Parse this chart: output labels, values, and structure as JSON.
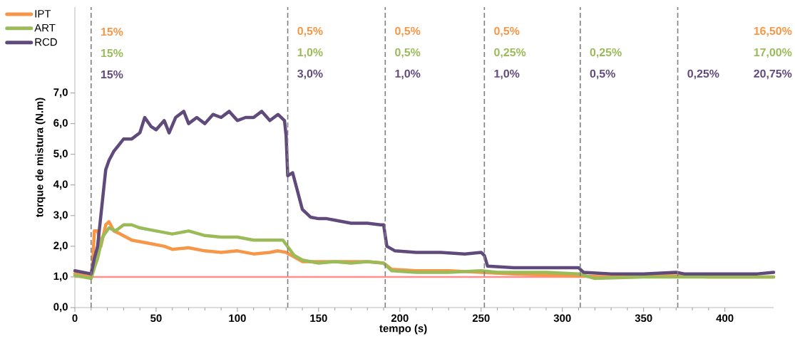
{
  "chart_data": {
    "type": "line",
    "xlabel": "tempo (s)",
    "ylabel": "torque de mistura (N.m)",
    "xlim": [
      0,
      430
    ],
    "ylim": [
      0,
      9.8
    ],
    "xticks": [
      0,
      50,
      100,
      150,
      200,
      250,
      300,
      350,
      400
    ],
    "yticks": [
      {
        "value": 0,
        "label": "0,0"
      },
      {
        "value": 1,
        "label": "1,0"
      },
      {
        "value": 2,
        "label": "2,0"
      },
      {
        "value": 3,
        "label": "3,0"
      },
      {
        "value": 4,
        "label": "4,0"
      },
      {
        "value": 5,
        "label": "5,0"
      },
      {
        "value": 6,
        "label": "6,0"
      },
      {
        "value": 7,
        "label": "7,0"
      }
    ],
    "grid": false,
    "legend": "top left",
    "marker": "none",
    "line_style": "solid",
    "series": [
      {
        "name": "IPT",
        "color": "#f79646",
        "x": [
          0,
          10,
          11,
          12,
          14,
          16,
          19,
          21,
          24,
          28,
          35,
          45,
          55,
          60,
          70,
          80,
          90,
          100,
          110,
          120,
          125,
          130,
          135,
          140,
          150,
          160,
          170,
          180,
          190,
          195,
          210,
          230,
          250,
          270,
          300,
          330,
          360,
          390,
          430
        ],
        "values": [
          1.1,
          1.0,
          1.5,
          2.5,
          2.5,
          2.0,
          2.7,
          2.8,
          2.5,
          2.4,
          2.2,
          2.1,
          2.0,
          1.9,
          1.95,
          1.85,
          1.8,
          1.85,
          1.75,
          1.8,
          1.85,
          1.8,
          1.65,
          1.5,
          1.5,
          1.5,
          1.5,
          1.5,
          1.45,
          1.25,
          1.2,
          1.2,
          1.15,
          1.1,
          1.05,
          1.0,
          1.05,
          1.0,
          1.0
        ]
      },
      {
        "name": "ART",
        "color": "#9bbb59",
        "x": [
          0,
          10,
          12,
          14,
          17,
          21,
          25,
          30,
          35,
          40,
          50,
          60,
          70,
          80,
          90,
          100,
          110,
          120,
          128,
          135,
          140,
          150,
          160,
          170,
          180,
          190,
          195,
          210,
          230,
          250,
          260,
          290,
          310,
          320,
          350,
          370,
          400,
          430
        ],
        "values": [
          1.05,
          0.95,
          1.3,
          1.6,
          2.3,
          2.6,
          2.5,
          2.7,
          2.7,
          2.6,
          2.5,
          2.4,
          2.5,
          2.35,
          2.3,
          2.3,
          2.2,
          2.2,
          2.2,
          1.7,
          1.55,
          1.45,
          1.5,
          1.45,
          1.5,
          1.45,
          1.2,
          1.15,
          1.15,
          1.2,
          1.15,
          1.15,
          1.1,
          0.95,
          1.0,
          1.0,
          1.0,
          1.0
        ]
      },
      {
        "name": "RCD",
        "color": "#604a7b",
        "x": [
          0,
          5,
          10,
          12,
          14,
          17,
          19,
          21,
          24,
          27,
          30,
          35,
          40,
          43,
          47,
          50,
          55,
          58,
          62,
          67,
          70,
          75,
          80,
          85,
          90,
          95,
          100,
          105,
          110,
          115,
          120,
          125,
          129,
          130,
          131,
          134,
          137,
          140,
          145,
          150,
          155,
          160,
          170,
          180,
          188,
          190,
          192,
          197,
          210,
          225,
          240,
          250,
          252,
          254,
          270,
          290,
          305,
          310,
          313,
          330,
          350,
          370,
          375,
          400,
          420,
          430
        ],
        "values": [
          1.2,
          1.15,
          1.1,
          1.6,
          2.0,
          3.5,
          4.5,
          4.8,
          5.1,
          5.3,
          5.5,
          5.5,
          5.7,
          6.2,
          5.9,
          5.8,
          6.1,
          5.7,
          6.2,
          6.4,
          6.0,
          6.2,
          6.0,
          6.3,
          6.2,
          6.4,
          6.1,
          6.2,
          6.2,
          6.4,
          6.1,
          6.3,
          6.1,
          5.6,
          4.3,
          4.4,
          3.8,
          3.2,
          2.95,
          2.9,
          2.9,
          2.85,
          2.75,
          2.75,
          2.7,
          2.7,
          2.0,
          1.85,
          1.8,
          1.8,
          1.75,
          1.8,
          1.7,
          1.35,
          1.3,
          1.3,
          1.3,
          1.3,
          1.15,
          1.1,
          1.1,
          1.15,
          1.1,
          1.1,
          1.1,
          1.15
        ]
      }
    ],
    "ref_lines": [
      {
        "axis": "y",
        "value": 1,
        "color": "#ff8f8f",
        "line_style": "solid"
      },
      {
        "axis": "x",
        "value": 10,
        "color": "#7f7f7f",
        "line_style": "dashed"
      },
      {
        "axis": "x",
        "value": 131,
        "color": "#7f7f7f",
        "line_style": "dashed"
      },
      {
        "axis": "x",
        "value": 191,
        "color": "#7f7f7f",
        "line_style": "dashed"
      },
      {
        "axis": "x",
        "value": 252,
        "color": "#7f7f7f",
        "line_style": "dashed"
      },
      {
        "axis": "x",
        "value": 311,
        "color": "#7f7f7f",
        "line_style": "dashed"
      },
      {
        "axis": "x",
        "value": 371,
        "color": "#7f7f7f",
        "line_style": "dashed"
      }
    ],
    "annotations": [
      "15%",
      "0,5%",
      "0,5%",
      "0,5%",
      "16,50%",
      "15%",
      "1,0%",
      "0,5%",
      "0,25%",
      "0,25%",
      "17,00%",
      "15%",
      "3,0%",
      "1,0%",
      "1,0%",
      "0,5%",
      "0,25%",
      "20,75%"
    ]
  }
}
